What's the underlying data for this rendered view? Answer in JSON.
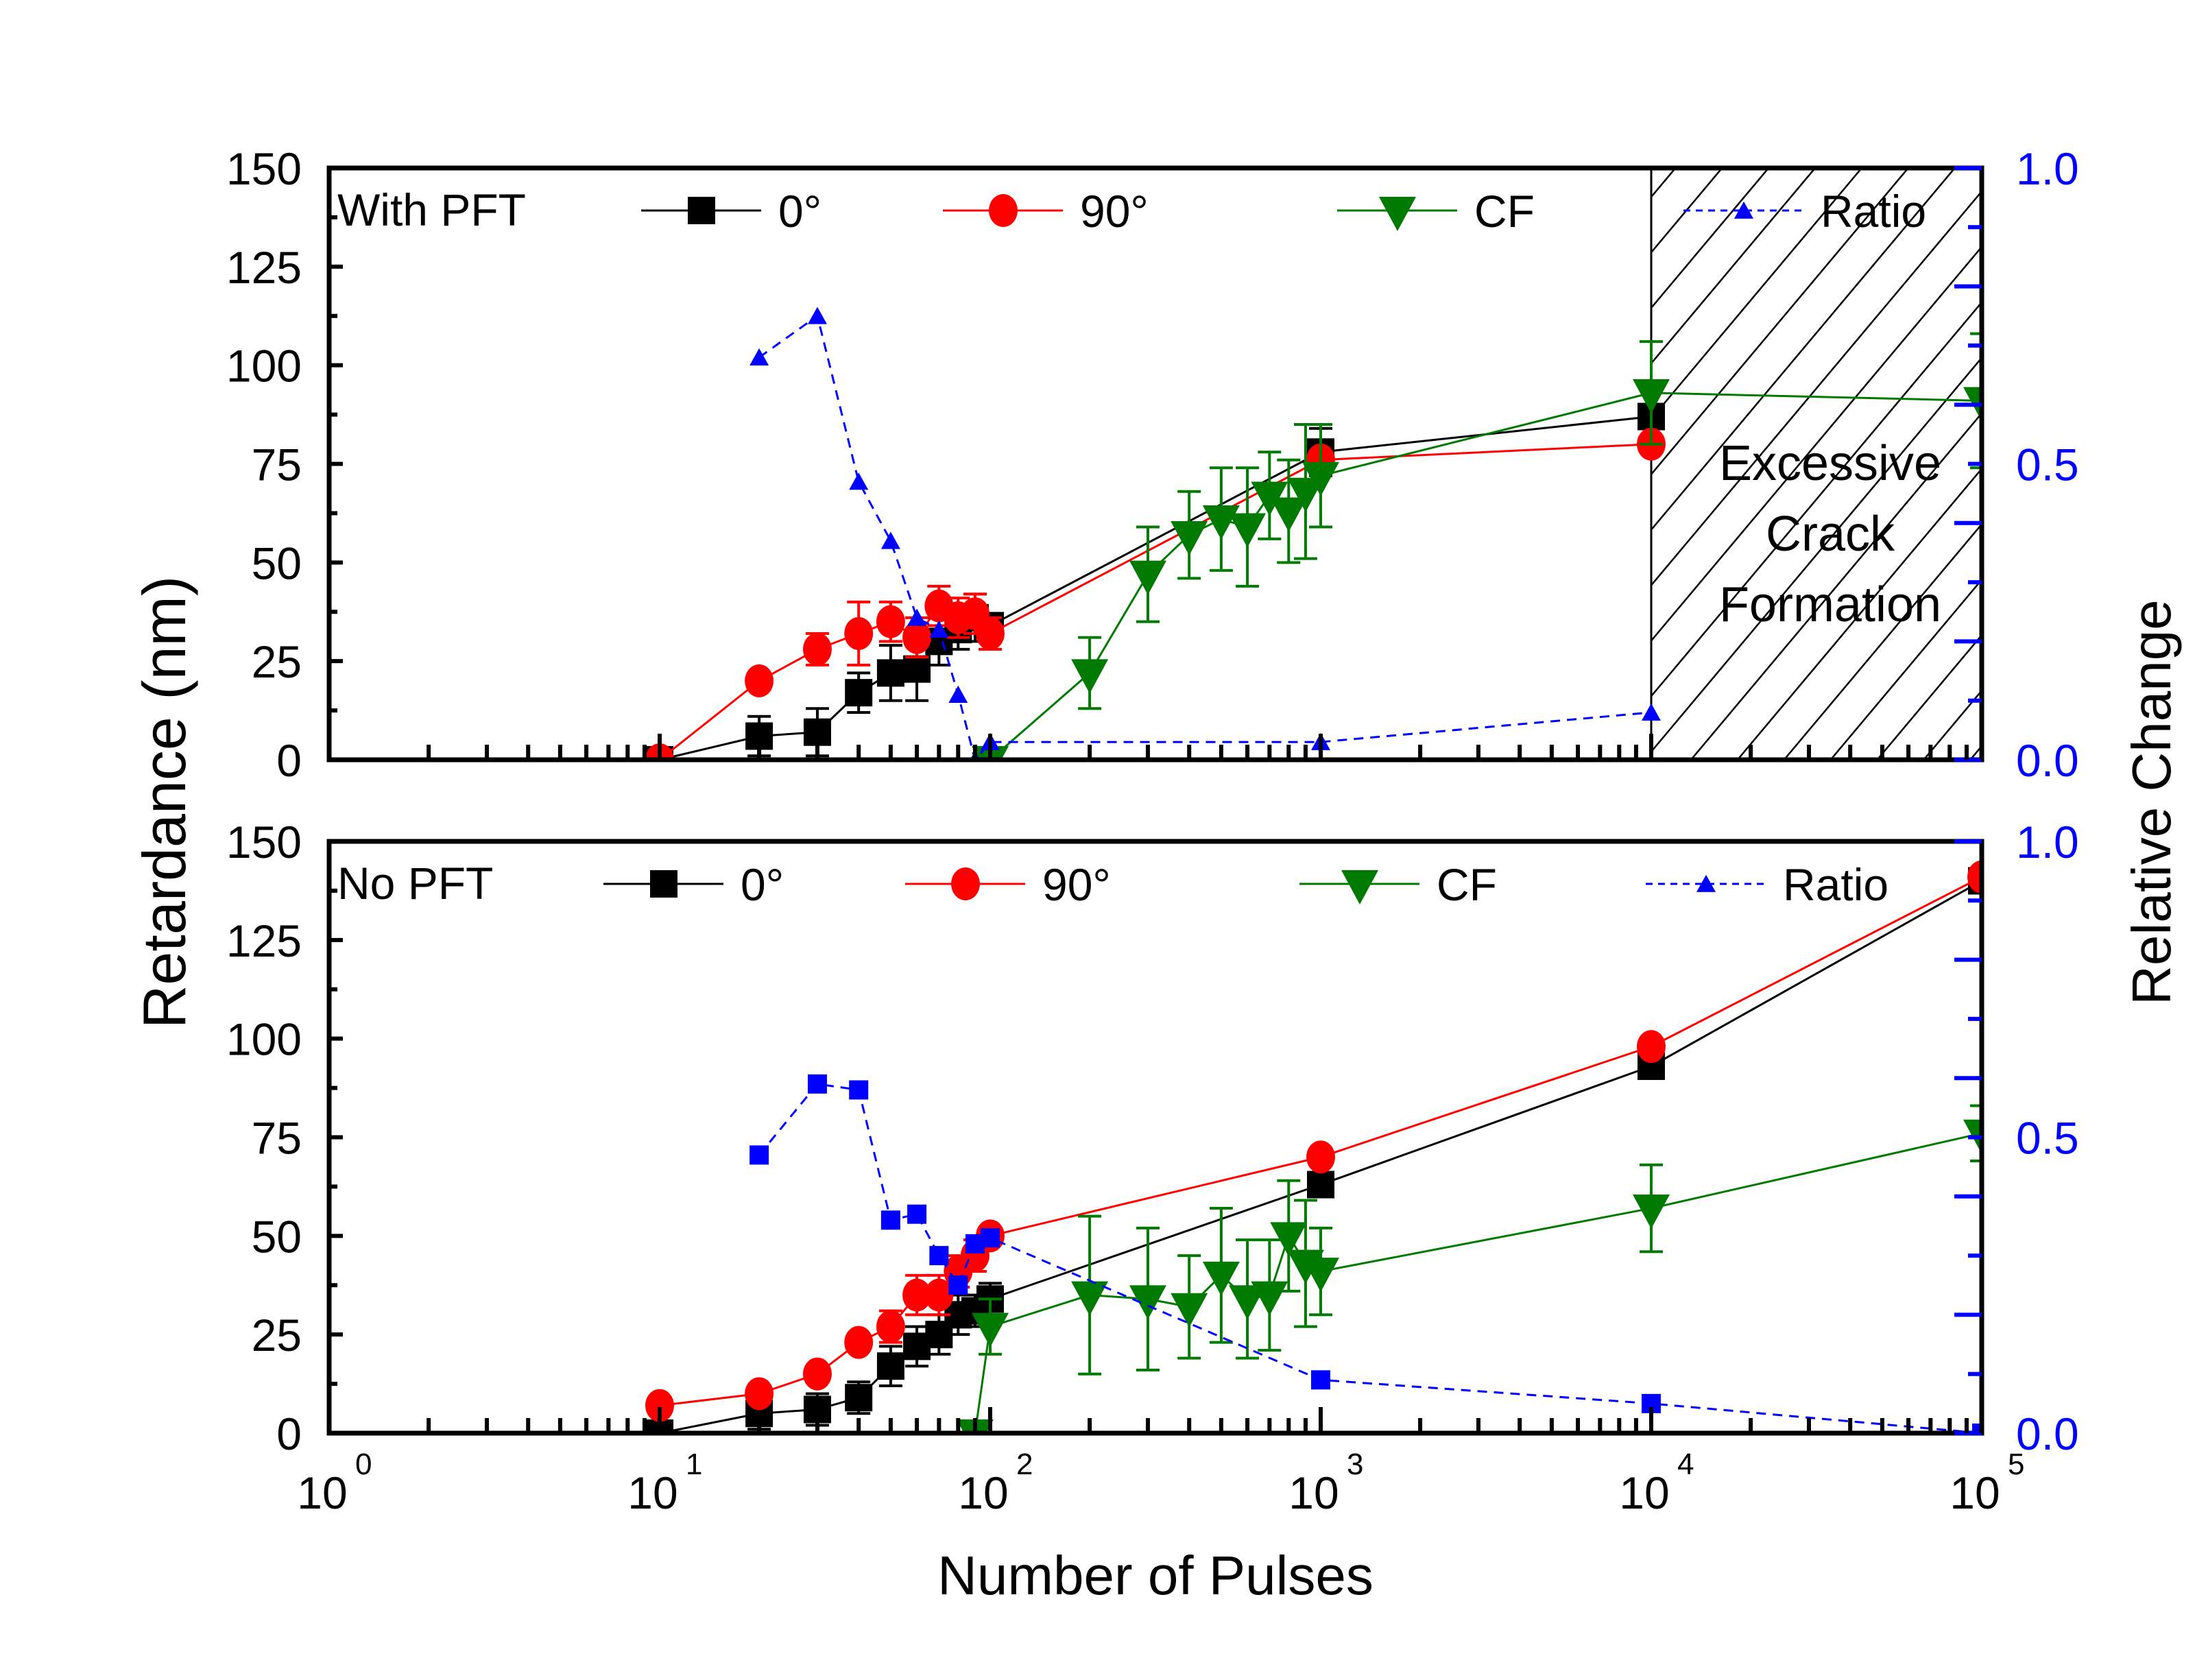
{
  "chart_data": {
    "type": "line",
    "xlabel": "Number of Pulses",
    "ylabel_left": "Retardance (nm)",
    "ylabel_right": "Relative Change",
    "x_scale": "log",
    "xlim": [
      1,
      100000
    ],
    "x_ticks": [
      {
        "base": "10",
        "exp": "0"
      },
      {
        "base": "10",
        "exp": "1"
      },
      {
        "base": "10",
        "exp": "2"
      },
      {
        "base": "10",
        "exp": "3"
      },
      {
        "base": "10",
        "exp": "4"
      },
      {
        "base": "10",
        "exp": "5"
      }
    ],
    "ylim_left": [
      0,
      150
    ],
    "y_ticks_left": [
      "0",
      "25",
      "50",
      "75",
      "100",
      "125",
      "150"
    ],
    "ylim_right": [
      0,
      1.0
    ],
    "y_ticks_right": [
      "0.0",
      "0.5",
      "1.0"
    ],
    "colors": {
      "deg0": "#000000",
      "deg90": "#ff0000",
      "cf": "#007a00",
      "ratio": "#0000ff",
      "right_axis": "#0000ff"
    },
    "panels": [
      {
        "name": "with-pft",
        "label": "With PFT",
        "legend": [
          "0°",
          "90°",
          "CF",
          "Ratio"
        ],
        "shaded_region": {
          "x_from": 10000,
          "x_to": 100000,
          "label_lines": [
            "Excessive",
            "Crack",
            "Formation"
          ],
          "pattern": "diagonal-hatch"
        },
        "series": [
          {
            "name": "0°",
            "key": "deg0",
            "marker": "square",
            "line": "solid",
            "axis": "left",
            "x": [
              10,
              20,
              30,
              40,
              50,
              60,
              70,
              80,
              90,
              100,
              1000,
              10000
            ],
            "y": [
              0,
              6,
              7,
              17,
              22,
              23,
              30,
              33,
              36,
              34,
              78,
              87
            ],
            "err": [
              2,
              5,
              6,
              5,
              7,
              8,
              6,
              5,
              6,
              3,
              6,
              3
            ]
          },
          {
            "name": "90°",
            "key": "deg90",
            "marker": "circle",
            "line": "solid",
            "axis": "left",
            "x": [
              10,
              20,
              30,
              40,
              50,
              60,
              70,
              80,
              90,
              100,
              1000,
              10000
            ],
            "y": [
              0,
              20,
              28,
              32,
              35,
              31,
              39,
              36,
              37,
              32,
              76,
              80
            ],
            "err": [
              1,
              1,
              4,
              8,
              5,
              5,
              5,
              5,
              5,
              4,
              1,
              2
            ]
          },
          {
            "name": "CF",
            "key": "cf",
            "marker": "triangle-down",
            "line": "solid",
            "axis": "left",
            "x": [
              100,
              200,
              300,
              400,
              500,
              600,
              700,
              800,
              900,
              1000,
              10000,
              100000
            ],
            "y": [
              0,
              22,
              47,
              57,
              61,
              59,
              67,
              63,
              68,
              72,
              93,
              91
            ],
            "err": [
              0,
              9,
              12,
              11,
              13,
              15,
              11,
              13,
              17,
              13,
              13,
              17
            ]
          },
          {
            "name": "Ratio",
            "key": "ratio",
            "marker": "triangle-up",
            "line": "dashed",
            "axis": "right",
            "x": [
              20,
              30,
              40,
              50,
              60,
              70,
              80,
              90,
              100,
              1000,
              10000
            ],
            "y": [
              0.68,
              0.75,
              0.47,
              0.37,
              0.24,
              0.22,
              0.11,
              0.0,
              0.03,
              0.03,
              0.08
            ]
          }
        ]
      },
      {
        "name": "no-pft",
        "label": "No PFT",
        "legend": [
          "0°",
          "90°",
          "CF",
          "Ratio"
        ],
        "series": [
          {
            "name": "0°",
            "key": "deg0",
            "marker": "square",
            "line": "solid",
            "axis": "left",
            "x": [
              10,
              20,
              30,
              40,
              50,
              60,
              70,
              80,
              90,
              100,
              1000,
              10000,
              100000
            ],
            "y": [
              0,
              5,
              6,
              9,
              17,
              22,
              25,
              30,
              31,
              34,
              63,
              93,
              140
            ],
            "err": [
              1,
              4,
              4,
              4,
              5,
              5,
              5,
              5,
              4,
              4,
              1,
              1,
              1
            ]
          },
          {
            "name": "90°",
            "key": "deg90",
            "marker": "circle",
            "line": "solid",
            "axis": "left",
            "x": [
              10,
              20,
              30,
              40,
              50,
              60,
              70,
              80,
              90,
              100,
              1000,
              10000,
              100000
            ],
            "y": [
              7,
              10,
              15,
              23,
              27,
              35,
              35,
              41,
              45,
              50,
              70,
              98,
              141
            ],
            "err": [
              1,
              1,
              1,
              2,
              4,
              5,
              5,
              4,
              4,
              1,
              1,
              1,
              1
            ]
          },
          {
            "name": "CF",
            "key": "cf",
            "marker": "triangle-down",
            "line": "solid",
            "axis": "left",
            "x": [
              90,
              100,
              200,
              300,
              400,
              500,
              600,
              700,
              800,
              900,
              1000,
              10000,
              100000
            ],
            "y": [
              0,
              27,
              35,
              34,
              32,
              40,
              34,
              35,
              50,
              43,
              41,
              57,
              76
            ],
            "err": [
              0,
              7,
              20,
              18,
              13,
              17,
              15,
              14,
              14,
              16,
              11,
              11,
              7
            ]
          },
          {
            "name": "Ratio",
            "key": "ratio",
            "marker": "square",
            "line": "dashed",
            "axis": "right",
            "x": [
              20,
              30,
              40,
              50,
              60,
              70,
              80,
              90,
              100,
              1000,
              10000,
              100000
            ],
            "y": [
              0.47,
              0.59,
              0.58,
              0.36,
              0.37,
              0.3,
              0.25,
              0.32,
              0.33,
              0.09,
              0.05,
              0.0
            ]
          }
        ]
      }
    ]
  }
}
